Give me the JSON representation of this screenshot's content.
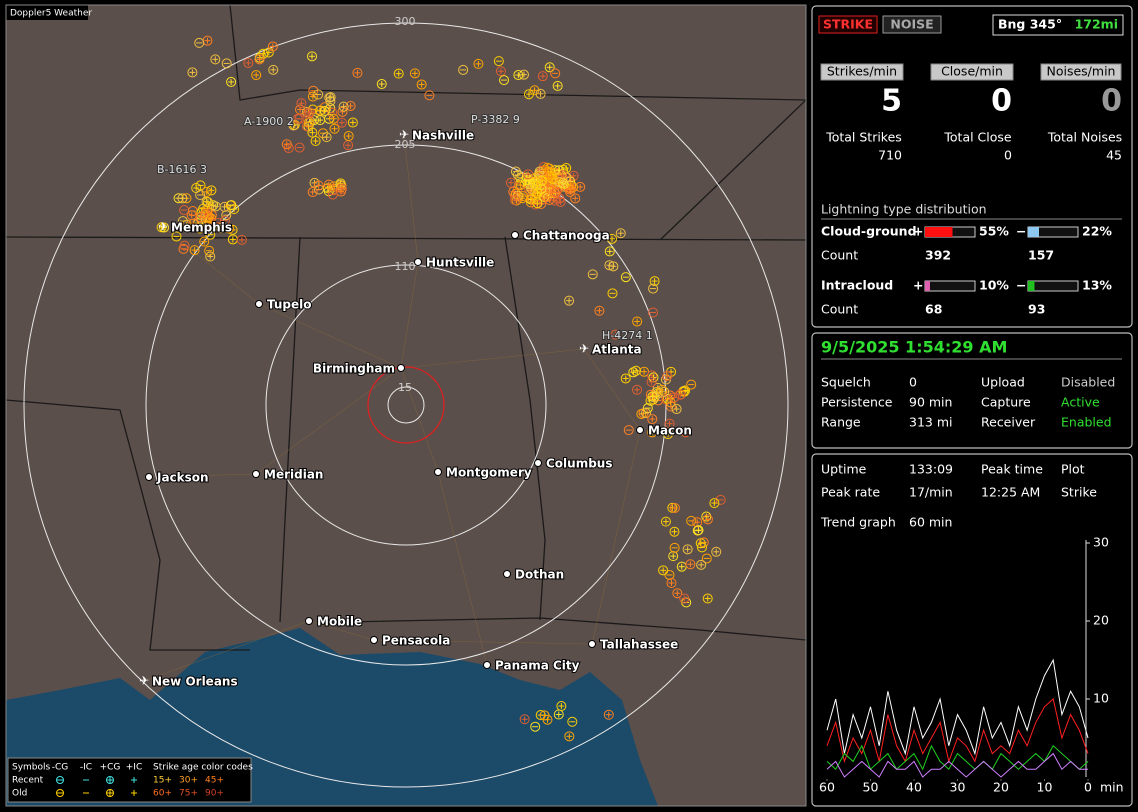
{
  "map": {
    "title": "Doppler5 Weather",
    "ranges": [
      300,
      205,
      110,
      15
    ],
    "cities": [
      "Nashville",
      "Memphis",
      "Chattanooga",
      "Huntsville",
      "Tupelo",
      "Atlanta",
      "Birmingham",
      "Macon",
      "Jackson",
      "Meridian",
      "Montgomery",
      "Columbus",
      "Dothan",
      "Mobile",
      "Pensacola",
      "Tallahassee",
      "Panama City",
      "New Orleans"
    ],
    "storms": [
      "A-1900 2",
      "P-3382 9",
      "B-1616 3",
      "H-4274 1"
    ],
    "legend": {
      "symbols_label": "Symbols",
      "types": [
        "-CG",
        "-IC",
        "+CG",
        "+IC"
      ],
      "age_label": "Strike age color codes",
      "rows": [
        {
          "name": "Recent",
          "ages": [
            "15+",
            "30+",
            "45+"
          ]
        },
        {
          "name": "Old",
          "ages": [
            "60+",
            "75+",
            "90+"
          ]
        }
      ]
    }
  },
  "status": {
    "modes": [
      "STRIKE",
      "NOISE"
    ],
    "bearing": "Bng 345°",
    "distance": "172mi",
    "rates": [
      {
        "label": "Strikes/min",
        "value": 5
      },
      {
        "label": "Close/min",
        "value": 0
      },
      {
        "label": "Noises/min",
        "value": 0
      }
    ],
    "totals": [
      {
        "label": "Total Strikes",
        "value": 710
      },
      {
        "label": "Total Close",
        "value": 0
      },
      {
        "label": "Total Noises",
        "value": 45
      }
    ],
    "distribution": {
      "title": "Lightning type distribution",
      "count_label": "Count",
      "rows": [
        {
          "name": "Cloud-ground",
          "positive": {
            "sign": "+",
            "percent": 55,
            "percent_label": "55%",
            "count": 392,
            "color": "#ff1010"
          },
          "negative": {
            "sign": "−",
            "percent": 22,
            "percent_label": "22%",
            "count": 157,
            "color": "#8cc8f0"
          }
        },
        {
          "name": "Intracloud",
          "positive": {
            "sign": "+",
            "percent": 10,
            "percent_label": "10%",
            "count": 68,
            "color": "#e060b0"
          },
          "negative": {
            "sign": "−",
            "percent": 13,
            "percent_label": "13%",
            "count": 93,
            "color": "#20c020"
          }
        }
      ]
    }
  },
  "info": {
    "datetime": "9/5/2025 1:54:29 AM",
    "rows": [
      [
        "Squelch",
        "0",
        "Upload",
        "Disabled"
      ],
      [
        "Persistence",
        "90 min",
        "Capture",
        "Active"
      ],
      [
        "Range",
        "313 mi",
        "Receiver",
        "Enabled"
      ]
    ]
  },
  "stats": {
    "rows": [
      [
        "Uptime",
        "133:09",
        "Peak time",
        "Plot"
      ],
      [
        "Peak rate",
        "17/min",
        "12:25 AM",
        "Strike"
      ],
      [
        "Trend graph",
        "60 min"
      ]
    ]
  },
  "trend": {
    "type": "line",
    "x": [
      60,
      58,
      56,
      54,
      52,
      50,
      48,
      46,
      44,
      42,
      40,
      38,
      36,
      34,
      32,
      30,
      28,
      26,
      24,
      22,
      20,
      18,
      16,
      14,
      12,
      10,
      8,
      6,
      4,
      2,
      0
    ],
    "series": [
      {
        "color": "#ffffff",
        "values": [
          6,
          10,
          3,
          8,
          5,
          9,
          4,
          11,
          6,
          3,
          9,
          5,
          7,
          10,
          4,
          8,
          6,
          3,
          9,
          5,
          7,
          4,
          9,
          6,
          10,
          13,
          15,
          8,
          11,
          9,
          5
        ]
      },
      {
        "color": "#ff2020",
        "values": [
          4,
          7,
          2,
          5,
          3,
          6,
          2,
          8,
          4,
          2,
          6,
          3,
          5,
          7,
          2,
          5,
          4,
          2,
          6,
          3,
          4,
          3,
          6,
          4,
          7,
          9,
          10,
          5,
          8,
          6,
          3
        ]
      },
      {
        "color": "#20d020",
        "values": [
          2,
          1,
          3,
          2,
          4,
          1,
          2,
          3,
          1,
          2,
          3,
          1,
          4,
          2,
          1,
          3,
          2,
          1,
          2,
          1,
          3,
          2,
          1,
          2,
          3,
          2,
          4,
          3,
          2,
          1,
          2
        ]
      },
      {
        "color": "#d080ff",
        "values": [
          1,
          2,
          0,
          1,
          2,
          1,
          0,
          2,
          1,
          1,
          2,
          0,
          1,
          1,
          2,
          1,
          0,
          1,
          2,
          1,
          0,
          1,
          2,
          1,
          1,
          2,
          3,
          1,
          2,
          1,
          1
        ]
      }
    ],
    "xlim": [
      60,
      0
    ],
    "ylim": [
      0,
      30
    ],
    "xticks": [
      60,
      50,
      40,
      30,
      20,
      10,
      0
    ],
    "yticks": [
      10,
      20,
      30
    ],
    "x_label": "min"
  }
}
